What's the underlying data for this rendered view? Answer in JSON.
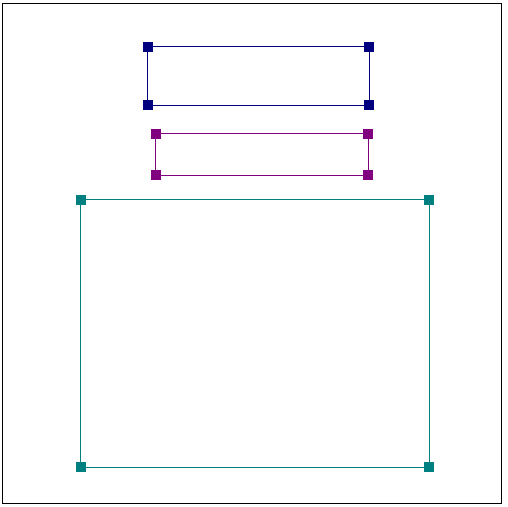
{
  "boxes": [
    {
      "id": "box-1",
      "color": "#00007f"
    },
    {
      "id": "box-2",
      "color": "#800080"
    },
    {
      "id": "box-3",
      "color": "#008080"
    }
  ]
}
